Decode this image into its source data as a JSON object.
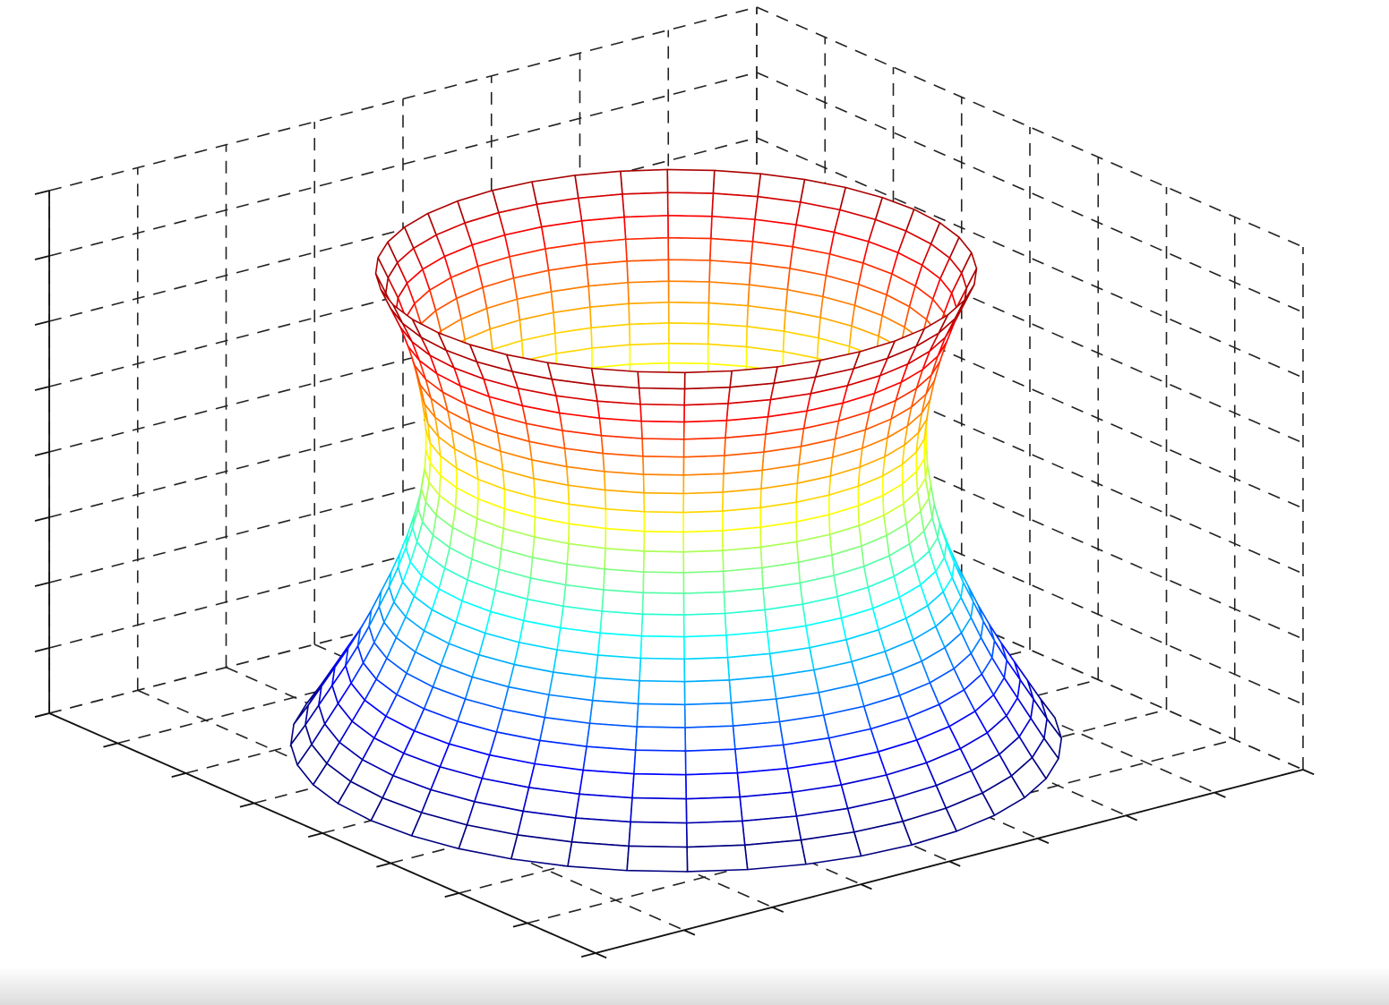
{
  "chart_data": {
    "type": "mesh",
    "colormap": "jet",
    "grid": true,
    "xlim": [
      -4,
      4
    ],
    "xticks": [
      -4,
      -3,
      -2,
      -1,
      0,
      1,
      2,
      3,
      4
    ],
    "ylim": [
      -4,
      4
    ],
    "yticks": [
      -4,
      -3,
      -2,
      -1,
      0,
      1,
      2,
      3,
      4
    ],
    "zlim": [
      0,
      8
    ],
    "zticks": [
      0,
      1,
      2,
      3,
      4,
      5,
      6,
      7,
      8
    ],
    "meridians": 40,
    "z": [
      0,
      0.3,
      0.6,
      0.9,
      1.2,
      1.5,
      1.8,
      2.1,
      2.4,
      2.7,
      3.0,
      3.3,
      3.6,
      3.9,
      4.2,
      4.5,
      4.8,
      5.1,
      5.4,
      5.7,
      6.0,
      6.3,
      6.6,
      6.9,
      7.2
    ],
    "r": [
      3.45,
      3.32,
      3.2,
      3.08,
      2.96,
      2.85,
      2.75,
      2.66,
      2.57,
      2.49,
      2.42,
      2.36,
      2.31,
      2.28,
      2.25,
      2.24,
      2.24,
      2.26,
      2.29,
      2.33,
      2.38,
      2.44,
      2.51,
      2.6,
      2.69
    ]
  }
}
